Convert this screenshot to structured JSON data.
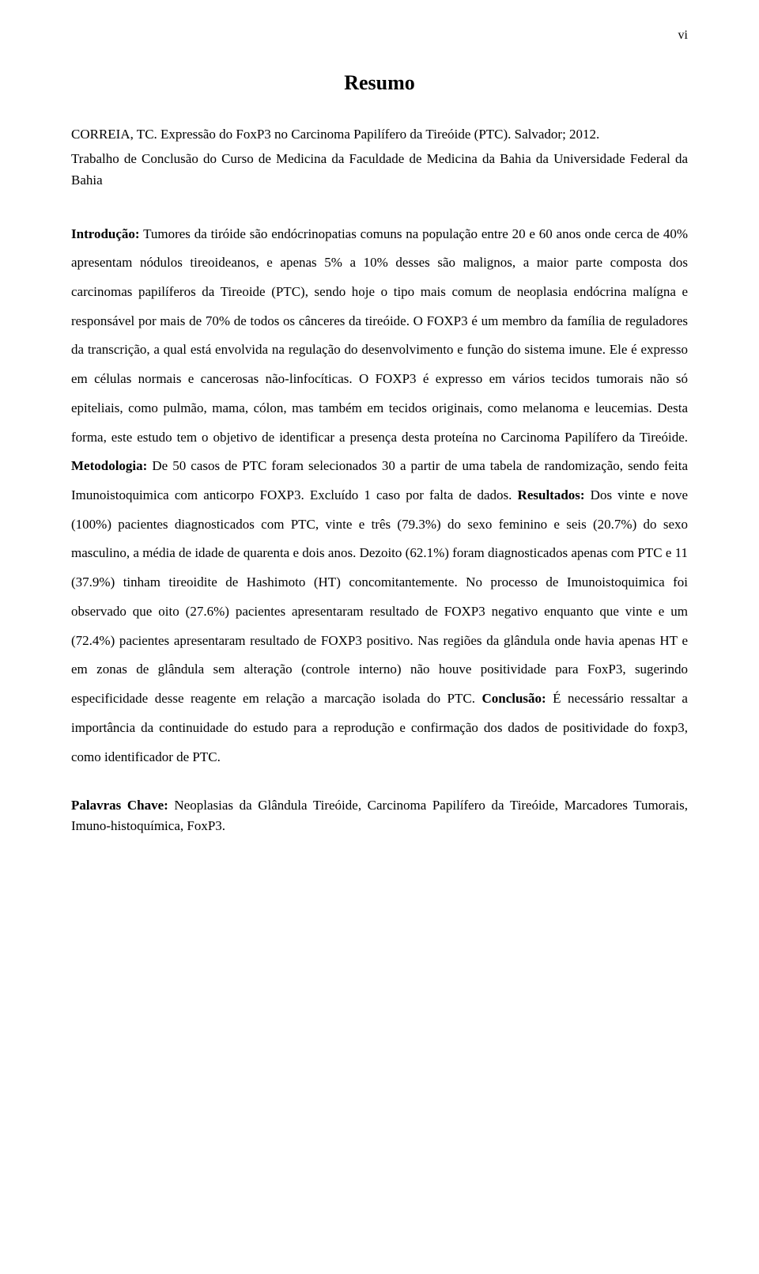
{
  "page": {
    "number": "vi",
    "title": "Resumo",
    "background_color": "#ffffff",
    "text_color": "#000000"
  },
  "citation": {
    "text": "CORREIA, TC. Expressão do FoxP3 no Carcinoma Papilífero da Tireóide (PTC). Salvador; 2012."
  },
  "institution": {
    "text": "Trabalho de Conclusão do Curso de Medicina da Faculdade de Medicina da Bahia da Universidade Federal da Bahia"
  },
  "body": {
    "intro_label": "Introdução:",
    "intro_text": " Tumores da tiróide são endócrinopatias comuns na população entre 20 e 60 anos onde cerca de 40% apresentam nódulos tireoideanos, e apenas 5% a 10%  desses são malignos, a maior parte composta dos carcinomas papilíferos da Tireoide (PTC), sendo hoje o tipo mais comum de neoplasia endócrina malígna e responsável por mais de 70% de todos os cânceres da tireóide. O FOXP3 é um membro da família de reguladores da transcrição, a qual está envolvida na regulação do desenvolvimento e função do sistema imune. Ele é expresso em células normais e cancerosas não-linfocíticas. O FOXP3 é expresso em vários tecidos tumorais não só epiteliais, como pulmão, mama, cólon, mas também em tecidos originais, como melanoma e leucemias. Desta forma, este estudo tem o objetivo de identificar a presença desta proteína no Carcinoma Papilífero da Tireóide. ",
    "methods_label": "Metodologia:",
    "methods_text": " De 50 casos de PTC foram selecionados 30 a partir de uma  tabela de randomização, sendo feita Imunoistoquimica com anticorpo FOXP3. Excluído 1 caso por falta de dados. ",
    "results_label": "Resultados:",
    "results_text": " Dos vinte e nove (100%) pacientes diagnosticados com PTC, vinte e três (79.3%) do sexo feminino e seis (20.7%) do sexo masculino, a média de idade de quarenta e dois anos. Dezoito (62.1%) foram diagnosticados apenas com PTC e 11 (37.9%) tinham tireoidite de Hashimoto (HT) concomitantemente.  No processo de Imunoistoquimica foi observado que oito (27.6%) pacientes apresentaram resultado de FOXP3 negativo enquanto que vinte e um (72.4%) pacientes apresentaram resultado de FOXP3 positivo. Nas regiões da glândula onde havia apenas HT e em zonas de glândula sem alteração (controle interno) não houve positividade para FoxP3, sugerindo especificidade desse reagente em relação a marcação isolada do PTC. ",
    "conclusion_label": "Conclusão:",
    "conclusion_text": " É necessário ressaltar a importância da continuidade do estudo para a reprodução e confirmação dos dados de positividade do foxp3, como identificador de PTC."
  },
  "keywords": {
    "label": "Palavras Chave:",
    "text": " Neoplasias da Glândula Tireóide, Carcinoma Papilífero da Tireóide, Marcadores Tumorais, Imuno-histoquímica, FoxP3."
  },
  "typography": {
    "font_family": "Times New Roman",
    "title_fontsize": 26,
    "body_fontsize": 17,
    "body_line_height": 2.16
  }
}
